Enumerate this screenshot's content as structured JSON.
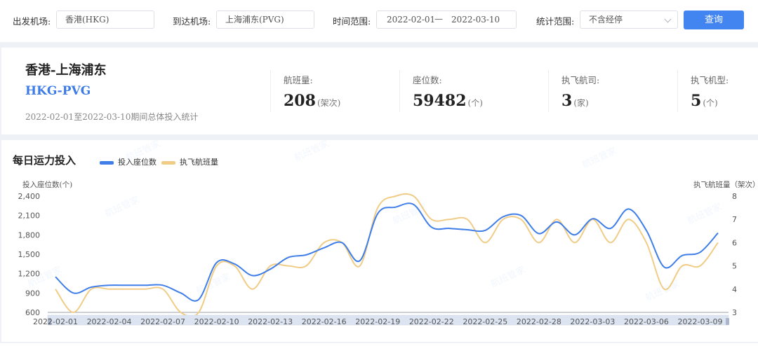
{
  "filters": {
    "departure_label": "出发机场:",
    "departure_value": "香港(HKG)",
    "arrival_label": "到达机场:",
    "arrival_value": "上海浦东(PVG)",
    "time_label": "时间范围:",
    "date_start": "2022-02-01",
    "date_sep": "—",
    "date_end": "2022-03-10",
    "scope_label": "统计范围:",
    "scope_value": "不含经停",
    "query_button": "查询"
  },
  "summary": {
    "route_name": "香港-上海浦东",
    "route_code": "HKG-PVG",
    "period_text": "2022-02-01至2022-03-10期间总体投入统计",
    "stats": [
      {
        "label": "航班量:",
        "value": "208",
        "unit": "(架次)"
      },
      {
        "label": "座位数:",
        "value": "59482",
        "unit": "(个)"
      },
      {
        "label": "执飞航司:",
        "value": "3",
        "unit": "(家)"
      },
      {
        "label": "执飞机型:",
        "value": "5",
        "unit": "(个)"
      }
    ]
  },
  "chart_section": {
    "title": "每日运力投入",
    "watermark": "航班管家"
  },
  "chart_data": {
    "type": "line",
    "legend_placement": "top-left",
    "grid": false,
    "x": [
      "2022-02-01",
      "2022-02-02",
      "2022-02-03",
      "2022-02-04",
      "2022-02-05",
      "2022-02-06",
      "2022-02-07",
      "2022-02-08",
      "2022-02-09",
      "2022-02-10",
      "2022-02-11",
      "2022-02-12",
      "2022-02-13",
      "2022-02-14",
      "2022-02-15",
      "2022-02-16",
      "2022-02-17",
      "2022-02-18",
      "2022-02-19",
      "2022-02-20",
      "2022-02-21",
      "2022-02-22",
      "2022-02-23",
      "2022-02-24",
      "2022-02-25",
      "2022-02-26",
      "2022-02-27",
      "2022-02-28",
      "2022-03-01",
      "2022-03-02",
      "2022-03-03",
      "2022-03-04",
      "2022-03-05",
      "2022-03-06",
      "2022-03-07",
      "2022-03-08",
      "2022-03-09",
      "2022-03-10"
    ],
    "x_tick_labels": [
      "2022-02-01",
      "2022-02-04",
      "2022-02-07",
      "2022-02-10",
      "2022-02-13",
      "2022-02-16",
      "2022-02-19",
      "2022-02-22",
      "2022-02-25",
      "2022-02-28",
      "2022-03-03",
      "2022-03-06",
      "2022-03-09"
    ],
    "series": [
      {
        "name": "投入座位数",
        "axis": "left",
        "color": "#3f7ee8",
        "values": [
          1150,
          900,
          990,
          1020,
          1020,
          1020,
          1020,
          900,
          800,
          1370,
          1350,
          1170,
          1270,
          1450,
          1490,
          1600,
          1680,
          1400,
          2130,
          2230,
          2270,
          1920,
          1900,
          1880,
          1870,
          2080,
          2100,
          1820,
          2000,
          1800,
          2050,
          1900,
          2200,
          1870,
          1300,
          1480,
          1530,
          1830
        ]
      },
      {
        "name": "执飞航班量",
        "axis": "right",
        "color": "#f0cc86",
        "values": [
          4,
          3,
          4,
          4,
          4,
          4,
          4,
          3,
          3,
          5,
          5,
          4,
          5,
          5,
          5,
          6,
          6,
          5,
          7.5,
          8,
          8,
          7,
          7,
          7,
          6,
          7,
          7,
          6,
          7,
          6,
          7,
          6,
          7,
          6,
          4,
          5,
          5,
          6
        ]
      }
    ],
    "y_left": {
      "label": "投入座位数(个)",
      "range": [
        600,
        2400
      ],
      "ticks": [
        "600",
        "900",
        "1,200",
        "1,500",
        "1,800",
        "2,100",
        "2,400"
      ]
    },
    "y_right": {
      "label": "执飞航班量（架次）",
      "range": [
        3,
        8
      ],
      "ticks": [
        "3",
        "4",
        "5",
        "6",
        "7",
        "8"
      ]
    }
  }
}
